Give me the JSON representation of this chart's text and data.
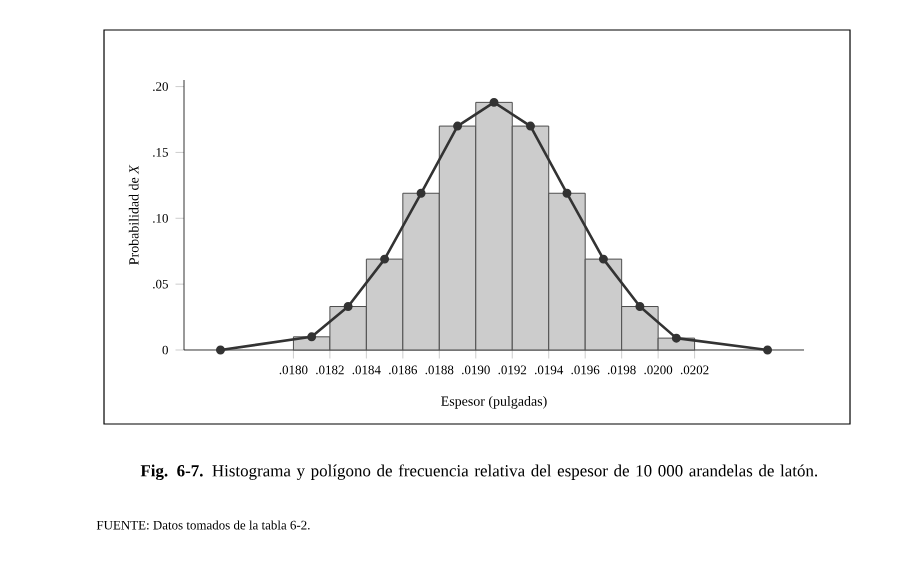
{
  "chart_data": {
    "type": "histogram",
    "series": [
      {
        "bins": [
          0.018,
          0.0182,
          0.0184,
          0.0186,
          0.0188,
          0.019,
          0.0192,
          0.0194,
          0.0196,
          0.0198,
          0.02,
          0.0202
        ],
        "values": [
          0.01,
          0.033,
          0.069,
          0.119,
          0.17,
          0.188,
          0.17,
          0.119,
          0.069,
          0.033,
          0.009
        ],
        "color": "#cccccc"
      },
      {
        "type": "line",
        "x": [
          0.0176,
          0.0181,
          0.0183,
          0.0185,
          0.0187,
          0.0189,
          0.0191,
          0.0193,
          0.0195,
          0.0197,
          0.0199,
          0.0201,
          0.0206
        ],
        "values": [
          0,
          0.01,
          0.033,
          0.069,
          0.119,
          0.17,
          0.188,
          0.17,
          0.119,
          0.069,
          0.033,
          0.009,
          0
        ],
        "color": "#333333",
        "marker": "circle"
      }
    ],
    "xlabel": "Espesor (pulgadas)",
    "ylabel": "Probabilidad de *X*",
    "xlim": [
      0.0174,
      0.0208
    ],
    "ylim": [
      0,
      0.205
    ],
    "xticks": [
      {
        "value": 0.018,
        "label": ".0180"
      },
      {
        "value": 0.0182,
        "label": ".0182"
      },
      {
        "value": 0.0184,
        "label": ".0184"
      },
      {
        "value": 0.0186,
        "label": ".0186"
      },
      {
        "value": 0.0188,
        "label": ".0188"
      },
      {
        "value": 0.019,
        "label": ".0190"
      },
      {
        "value": 0.0192,
        "label": ".0192"
      },
      {
        "value": 0.0194,
        "label": ".0194"
      },
      {
        "value": 0.0196,
        "label": ".0196"
      },
      {
        "value": 0.0198,
        "label": ".0198"
      },
      {
        "value": 0.02,
        "label": ".0200"
      },
      {
        "value": 0.0202,
        "label": ".0202"
      }
    ],
    "yticks": [
      0,
      {
        "value": 0.05,
        "label": ".05"
      },
      {
        "value": 0.1,
        "label": ".10"
      },
      {
        "value": 0.15,
        "label": ".15"
      },
      {
        "value": 0.2,
        "label": ".20"
      }
    ],
    "annotations": [
      "**Fig. 6-7.** Histograma y polígono de frecuencia relativa del espesor de 10 000 arandelas de latón.",
      "FUENTE: Datos tomados de la tabla 6-2."
    ]
  }
}
